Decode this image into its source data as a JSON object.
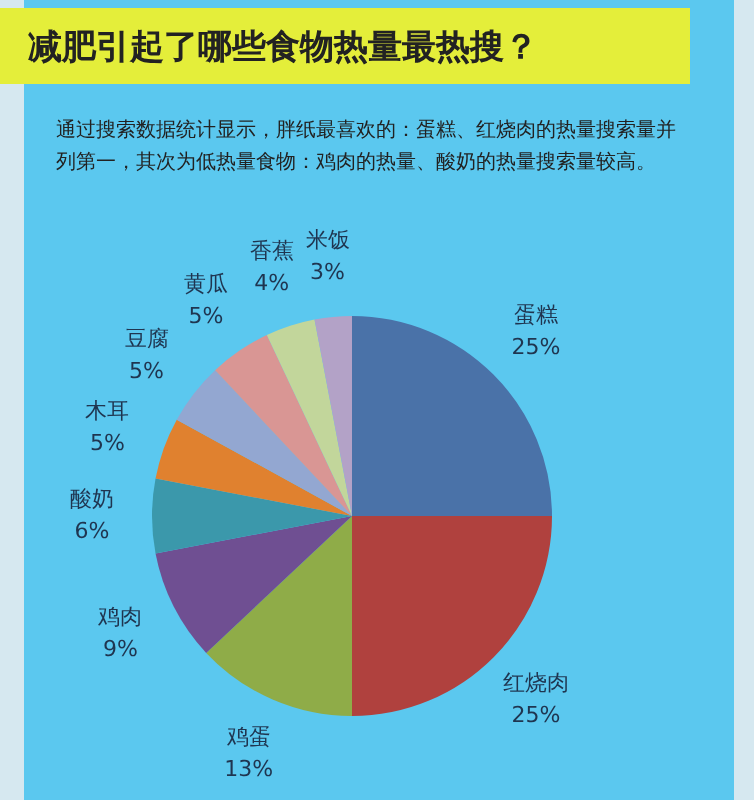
{
  "chart_data": {
    "type": "pie",
    "title": "减肥引起了哪些食物热量最热搜？",
    "subtitle": "通过搜索数据统计显示，胖纸最喜欢的：蛋糕、红烧肉的热量搜索量并列第一，其次为低热量食物：鸡肉的热量、酸奶的热量搜索量较高。",
    "categories": [
      "蛋糕",
      "红烧肉",
      "鸡蛋",
      "鸡肉",
      "酸奶",
      "木耳",
      "豆腐",
      "黄瓜",
      "香蕉",
      "米饭"
    ],
    "values": [
      25,
      25,
      13,
      9,
      6,
      5,
      5,
      5,
      4,
      3
    ],
    "value_labels": [
      "25%",
      "25%",
      "13%",
      "9%",
      "6%",
      "5%",
      "5%",
      "5%",
      "4%",
      "3%"
    ],
    "colors": [
      "#4a72a8",
      "#b0413e",
      "#8fac48",
      "#6f4f92",
      "#3b98ab",
      "#e0812f",
      "#93a7d1",
      "#d99694",
      "#c2d69b",
      "#b3a2c7"
    ],
    "legend": false
  }
}
